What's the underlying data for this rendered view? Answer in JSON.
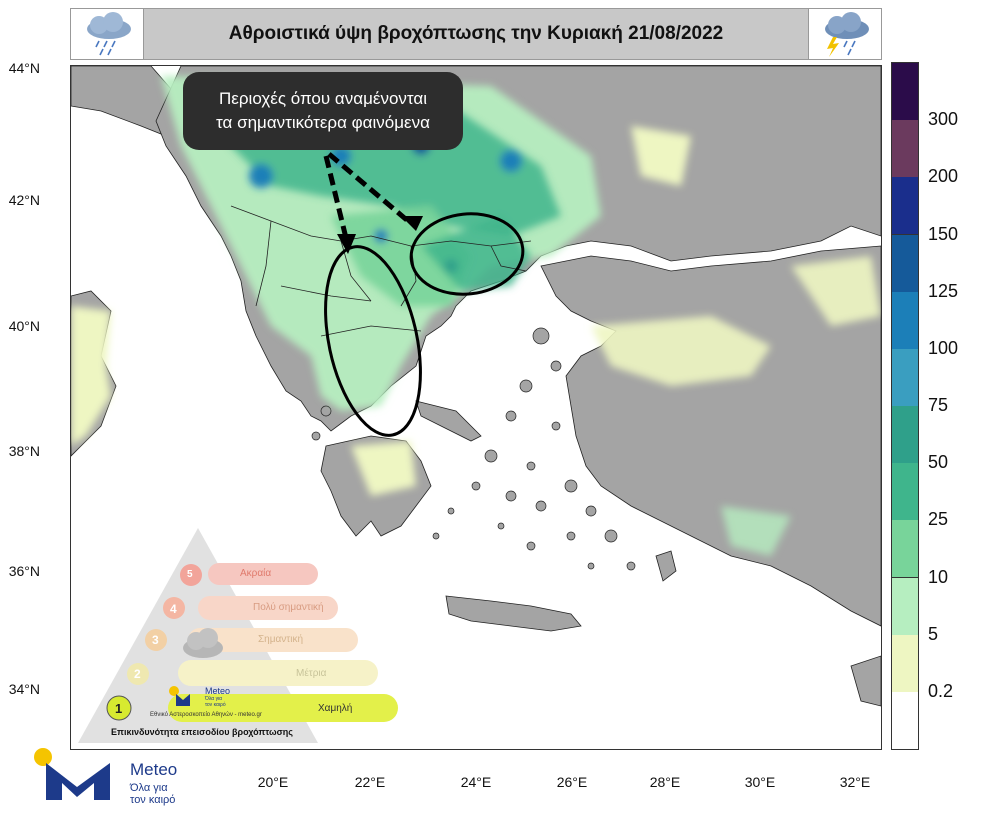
{
  "title": "Αθροιστικά ύψη βροχόπτωσης την Κυριακή 21/08/2022",
  "icons": {
    "left": "rain-cloud-icon",
    "right": "thunderstorm-cloud-icon"
  },
  "callout": {
    "line1": "Περιοχές όπου αναμένονται",
    "line2": "τα σημαντικότερα φαινόμενα"
  },
  "lat_labels": [
    "44°N",
    "42°N",
    "40°N",
    "38°N",
    "36°N",
    "34°N"
  ],
  "lon_labels": [
    "20°E",
    "22°E",
    "24°E",
    "26°E",
    "28°E",
    "30°E",
    "32°E"
  ],
  "colorbar": {
    "labels": [
      "300",
      "200",
      "150",
      "125",
      "100",
      "75",
      "50",
      "25",
      "10",
      "5",
      "0.2"
    ],
    "colors": [
      "#2b0c4a",
      "#6b3a5e",
      "#1a2e8c",
      "#155a9a",
      "#1c7fb8",
      "#3a9ec0",
      "#2fa08a",
      "#3fb58c",
      "#78d49a",
      "#b6eec0",
      "#eef6c2",
      "#ffffff"
    ]
  },
  "risk_scale": {
    "levels": [
      "Ακραία",
      "Πολύ σημαντική",
      "Σημαντική",
      "Μέτρια",
      "Χαμηλή"
    ],
    "numbers": [
      "5",
      "4",
      "3",
      "2",
      "1"
    ],
    "footer": "Επικινδυνότητα επεισοδίου βροχόπτωσης",
    "small_text": "Εθνικό Αστεροσκοπείο Αθηνών - meteo.gr",
    "brand": "Meteo",
    "brand_sub1": "Όλα για",
    "brand_sub2": "τον καιρό"
  },
  "logo": {
    "name": "Meteo",
    "tagline_line1": "Όλα για",
    "tagline_line2": "τον καιρό"
  },
  "colors": {
    "land": "#a4a4a4",
    "sea": "#ffffff",
    "rain_light": "#eef6c2",
    "rain_low": "#b6eec0",
    "rain_mid": "#3fb58c",
    "rain_high": "#1c7fb8",
    "callout_bg": "#2d2d2d",
    "logo_blue": "#1d3a8a",
    "logo_sun": "#f5c400"
  }
}
